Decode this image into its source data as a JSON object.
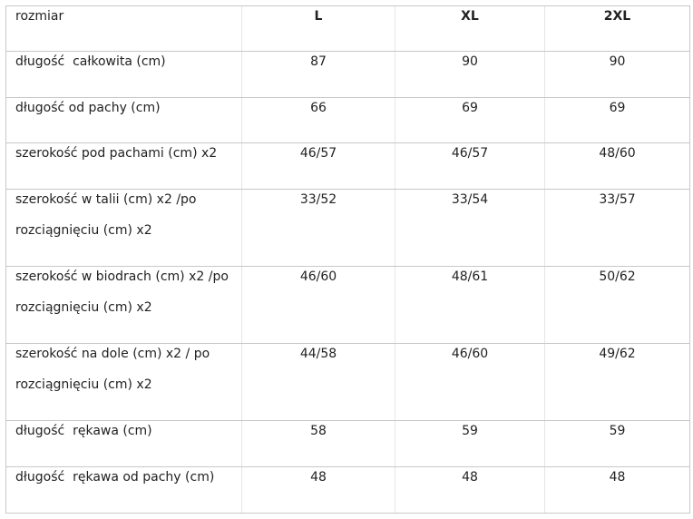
{
  "table": {
    "header": [
      "rozmiar",
      "L",
      "XL",
      "2XL"
    ],
    "rows": [
      [
        "długość  całkowita (cm)",
        "87",
        "90",
        "90"
      ],
      [
        "długość od pachy (cm)",
        "66",
        "69",
        "69"
      ],
      [
        "szerokość pod pachami (cm) x2",
        "46/57",
        "46/57",
        "48/60"
      ],
      [
        "szerokość w talii (cm) x2 /po rozciągnięciu (cm) x2",
        "33/52",
        "33/54",
        "33/57"
      ],
      [
        "szerokość w biodrach (cm) x2 /po rozciągnięciu (cm) x2",
        "46/60",
        "48/61",
        "50/62"
      ],
      [
        "szerokość na dole (cm) x2 / po rozciągnięciu (cm) x2",
        "44/58",
        "46/60",
        "49/62"
      ],
      [
        "długość  rękawa (cm)",
        "58",
        "59",
        "59"
      ],
      [
        "długość  rękawa od pachy (cm)",
        "48",
        "48",
        "48"
      ]
    ]
  }
}
